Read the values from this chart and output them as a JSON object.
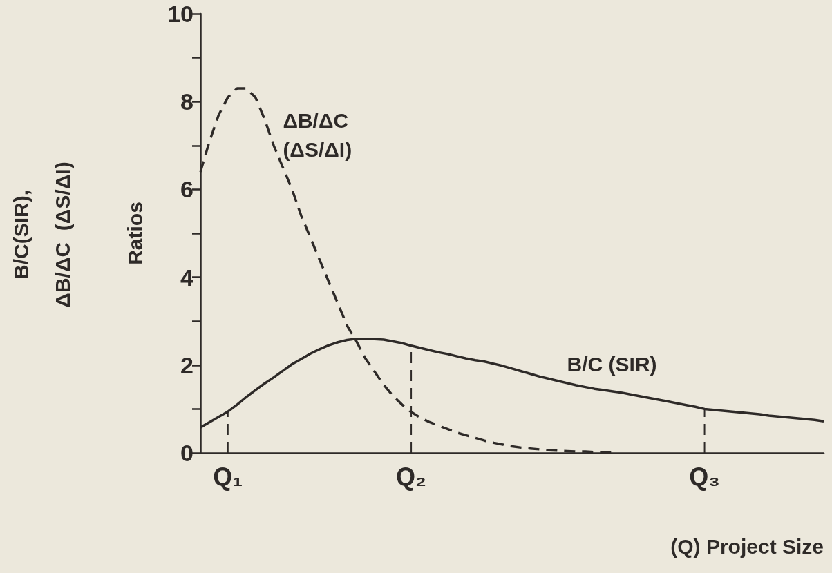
{
  "chart_data": {
    "type": "line",
    "ylabel": "Ratios",
    "xlabel": "(Q) Project Size",
    "annotations": [
      "B/C(SIR),",
      "ΔB/ΔC  (ΔS/ΔI)"
    ],
    "categories": [
      null,
      null,
      null,
      "Q₁",
      null,
      null,
      null,
      null,
      null,
      null,
      null,
      null,
      null,
      null,
      null,
      null,
      null,
      null,
      null,
      null,
      null,
      null,
      null,
      "Q₂",
      null,
      null,
      null,
      null,
      null,
      null,
      null,
      null,
      null,
      null,
      null,
      null,
      null,
      null,
      null,
      null,
      null,
      null,
      null,
      null,
      null,
      null,
      null,
      null,
      null,
      null,
      null,
      null,
      null,
      null,
      null,
      "Q₃",
      null,
      null,
      null,
      null,
      null,
      null,
      null,
      null,
      null,
      null,
      null,
      null,
      null
    ],
    "ylim": [
      0,
      10
    ],
    "yticks": [
      0,
      {
        "value": 1,
        "label": null
      },
      2,
      {
        "value": 3,
        "label": null
      },
      4,
      {
        "value": 5,
        "label": null
      },
      6,
      {
        "value": 7,
        "label": null
      },
      8,
      {
        "value": 9,
        "label": null
      },
      10
    ],
    "marker": "none",
    "series": [
      {
        "name": "ΔB/ΔC (ΔS/ΔI)",
        "color": "#2e2a28",
        "line_style": "dashed",
        "values": [
          6.4,
          7.1,
          7.7,
          8.1,
          8.3,
          8.3,
          8.1,
          7.6,
          7.0,
          6.5,
          6.0,
          5.4,
          4.9,
          4.4,
          3.9,
          3.4,
          2.9,
          2.55,
          2.15,
          1.85,
          1.55,
          1.3,
          1.1,
          0.93,
          0.8,
          0.7,
          0.62,
          0.54,
          0.46,
          0.4,
          0.34,
          0.28,
          0.23,
          0.19,
          0.15,
          0.12,
          0.1,
          0.08,
          0.06,
          0.05,
          0.04,
          0.03,
          0.03,
          0.02,
          0.02,
          0.02,
          null,
          null,
          null,
          null,
          null,
          null,
          null,
          null,
          null,
          null,
          null,
          null,
          null,
          null,
          null,
          null,
          null,
          null,
          null,
          null,
          null,
          null,
          null
        ]
      },
      {
        "name": "B/C (SIR)",
        "color": "#2e2a28",
        "line_style": "solid",
        "values": [
          0.58,
          0.7,
          0.82,
          0.94,
          1.1,
          1.27,
          1.43,
          1.58,
          1.72,
          1.87,
          2.02,
          2.14,
          2.26,
          2.36,
          2.45,
          2.52,
          2.57,
          2.6,
          2.6,
          2.59,
          2.58,
          2.54,
          2.5,
          2.44,
          2.39,
          2.34,
          2.29,
          2.25,
          2.2,
          2.15,
          2.11,
          2.08,
          2.03,
          1.98,
          1.92,
          1.86,
          1.8,
          1.74,
          1.69,
          1.64,
          1.59,
          1.54,
          1.5,
          1.46,
          1.43,
          1.4,
          1.37,
          1.33,
          1.29,
          1.25,
          1.21,
          1.17,
          1.13,
          1.09,
          1.05,
          1.0,
          0.98,
          0.96,
          0.94,
          0.92,
          0.9,
          0.88,
          0.85,
          0.83,
          0.81,
          0.79,
          0.77,
          0.75,
          0.72
        ]
      },
      {
        "color": "#2e2a28",
        "line_style": "dashed",
        "x": [
          "Q₁",
          "Q₁"
        ],
        "values": [
          0,
          0.94
        ]
      },
      {
        "color": "#2e2a28",
        "line_style": "dashed",
        "x": [
          "Q₂",
          "Q₂"
        ],
        "values": [
          0,
          2.44
        ]
      },
      {
        "color": "#2e2a28",
        "line_style": "dashed",
        "x": [
          "Q₃",
          "Q₃"
        ],
        "values": [
          0,
          1.0
        ]
      }
    ]
  }
}
